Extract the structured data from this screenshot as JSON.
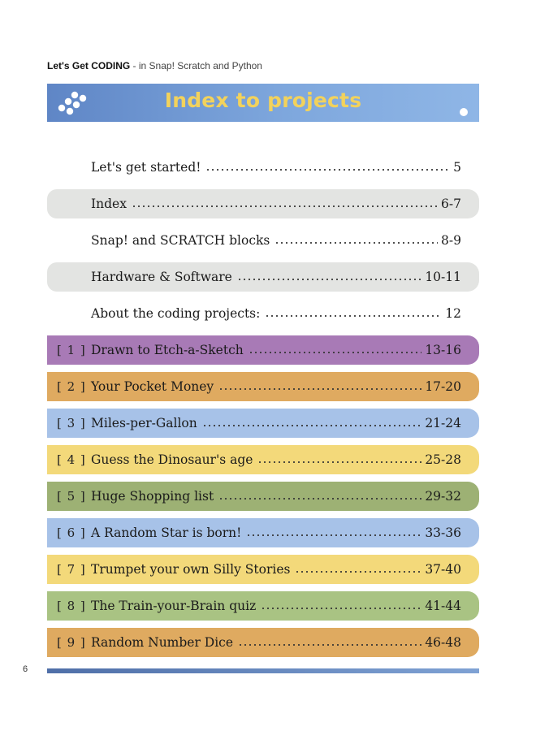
{
  "header": {
    "book_title": "Let's Get CODING",
    "book_subtitle": " - in Snap! Scratch and Python"
  },
  "banner": {
    "title": "Index to projects",
    "color_start": "#5f86c6",
    "color_end": "#8fb6e6",
    "title_color": "#f2d25c",
    "icon_left": "dots-icon",
    "icon_right": "dot-icon"
  },
  "entries": [
    {
      "number": "",
      "title": "Let's get started!",
      "pages": "5",
      "bg": ""
    },
    {
      "number": "",
      "title": "Index",
      "pages": "6-7",
      "bg": "#e3e4e2"
    },
    {
      "number": "",
      "title": "Snap! and SCRATCH blocks",
      "pages": "8-9",
      "bg": ""
    },
    {
      "number": "",
      "title": "Hardware & Software",
      "pages": "10-11",
      "bg": "#e3e4e2"
    },
    {
      "number": "",
      "title": "About the coding projects:",
      "pages": "12",
      "bg": ""
    },
    {
      "number": "[ 1 ]",
      "title": "Drawn to Etch-a-Sketch",
      "pages": "13-16",
      "bg": "#a87ab6"
    },
    {
      "number": "[ 2 ]",
      "title": "Your Pocket Money",
      "pages": "17-20",
      "bg": "#dfaa60"
    },
    {
      "number": "[ 3 ]",
      "title": "Miles-per-Gallon",
      "pages": "21-24",
      "bg": "#a7c2e8"
    },
    {
      "number": "[ 4 ]",
      "title": "Guess the Dinosaur's age",
      "pages": "25-28",
      "bg": "#f3d97a"
    },
    {
      "number": "[ 5 ]",
      "title": "Huge Shopping list",
      "pages": "29-32",
      "bg": "#9db174"
    },
    {
      "number": "[ 6 ]",
      "title": "A Random Star is born!",
      "pages": "33-36",
      "bg": "#a7c2e8"
    },
    {
      "number": "[ 7 ]",
      "title": "Trumpet your own Silly Stories",
      "pages": "37-40",
      "bg": "#f3d97a"
    },
    {
      "number": "[ 8 ]",
      "title": "The Train-your-Brain quiz",
      "pages": "41-44",
      "bg": "#a9c383"
    },
    {
      "number": "[ 9 ]",
      "title": "Random Number Dice",
      "pages": "46-48",
      "bg": "#dfaa60"
    }
  ],
  "footer": {
    "page_number": "6",
    "bar_color": "#5a7cb6"
  }
}
